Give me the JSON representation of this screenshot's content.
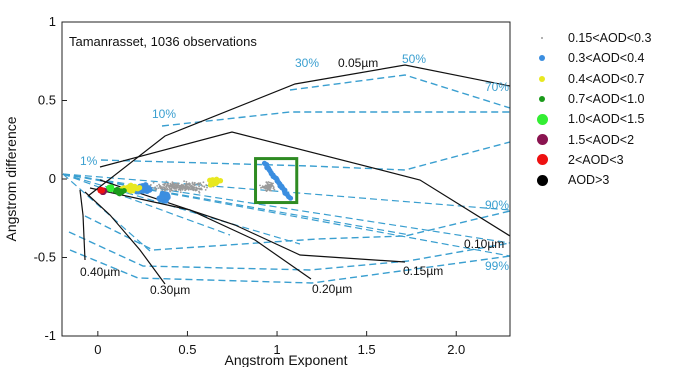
{
  "chart_data": {
    "type": "scatter",
    "title": "Tamanrasset, 1036 observations",
    "xlabel": "Angstrom Exponent",
    "ylabel": "Angstrom difference",
    "xlim": [
      -0.2,
      2.3
    ],
    "ylim": [
      -1,
      1
    ],
    "xticks": [
      {
        "value": 0,
        "label": "0"
      },
      {
        "value": 0.5,
        "label": "0.5"
      },
      {
        "value": 1,
        "label": "1"
      },
      {
        "value": 1.5,
        "label": "1.5"
      },
      {
        "value": 2,
        "label": "2.0"
      }
    ],
    "yticks": [
      {
        "value": 1,
        "label": "1"
      },
      {
        "value": 0.5,
        "label": "0.5"
      },
      {
        "value": 0,
        "label": "0"
      },
      {
        "value": -0.5,
        "label": "-0.5"
      },
      {
        "value": -1,
        "label": "-1"
      }
    ],
    "legend_position": "right",
    "legend": [
      {
        "label": "0.15<AOD<0.3",
        "color": "#9a9a9a",
        "size": 2
      },
      {
        "label": "0.3<AOD<0.4",
        "color": "#3b8ee0",
        "size": 6
      },
      {
        "label": "0.4<AOD<0.7",
        "color": "#e8e820",
        "size": 6
      },
      {
        "label": "0.7<AOD<1.0",
        "color": "#1a9a1a",
        "size": 6
      },
      {
        "label": "1.0<AOD<1.5",
        "color": "#33ee33",
        "size": 11
      },
      {
        "label": "1.5<AOD<2",
        "color": "#8a1450",
        "size": 11
      },
      {
        "label": "2<AOD<3",
        "color": "#ee1111",
        "size": 11
      },
      {
        "label": "AOD>3",
        "color": "#000000",
        "size": 11
      }
    ],
    "grid": {
      "radius_labels": [
        "0.05µm",
        "0.10µm",
        "0.15µm",
        "0.20µm",
        "0.30µm",
        "0.40µm"
      ],
      "fraction_labels": [
        "1%",
        "10%",
        "30%",
        "50%",
        "70%",
        "90%",
        "99%"
      ],
      "solid_color": "#111111",
      "dashed_color": "#3a9fd0"
    },
    "highlight_box": {
      "x0": 0.88,
      "x1": 1.11,
      "y0": -0.15,
      "y1": 0.13,
      "color": "#2e8b22"
    },
    "clusters": [
      {
        "series": "0.15<AOD<0.3",
        "cx": 0.45,
        "cy": -0.05,
        "sx": 0.3,
        "sy": 0.06,
        "n": 260
      },
      {
        "series": "0.15<AOD<0.3",
        "cx": 0.95,
        "cy": -0.05,
        "sx": 0.08,
        "sy": 0.06,
        "n": 70
      },
      {
        "series": "0.3<AOD<0.4",
        "cx": 0.25,
        "cy": -0.06,
        "sx": 0.09,
        "sy": 0.04,
        "n": 70
      },
      {
        "series": "0.3<AOD<0.4",
        "cx": 0.37,
        "cy": -0.12,
        "sx": 0.04,
        "sy": 0.04,
        "n": 35
      },
      {
        "series": "0.4<AOD<0.7",
        "cx": 0.18,
        "cy": -0.06,
        "sx": 0.08,
        "sy": 0.04,
        "n": 35
      },
      {
        "series": "0.4<AOD<0.7",
        "cx": 0.65,
        "cy": -0.02,
        "sx": 0.08,
        "sy": 0.04,
        "n": 15
      },
      {
        "series": "0.7<AOD<1.0",
        "cx": 0.12,
        "cy": -0.08,
        "sx": 0.05,
        "sy": 0.03,
        "n": 30
      },
      {
        "series": "1.0<AOD<1.5",
        "cx": 0.07,
        "cy": -0.06,
        "sx": 0.03,
        "sy": 0.02,
        "n": 5
      },
      {
        "series": "1.5<AOD<2",
        "cx": 0.03,
        "cy": -0.08,
        "sx": 0.015,
        "sy": 0.015,
        "n": 4
      },
      {
        "series": "2<AOD<3",
        "cx": 0.02,
        "cy": -0.07,
        "sx": 0.012,
        "sy": 0.012,
        "n": 3
      }
    ],
    "highlight_series": {
      "series": "0.3<AOD<0.4",
      "x0": 0.93,
      "y0": 0.1,
      "x1": 1.07,
      "y1": -0.12,
      "n": 28
    }
  }
}
